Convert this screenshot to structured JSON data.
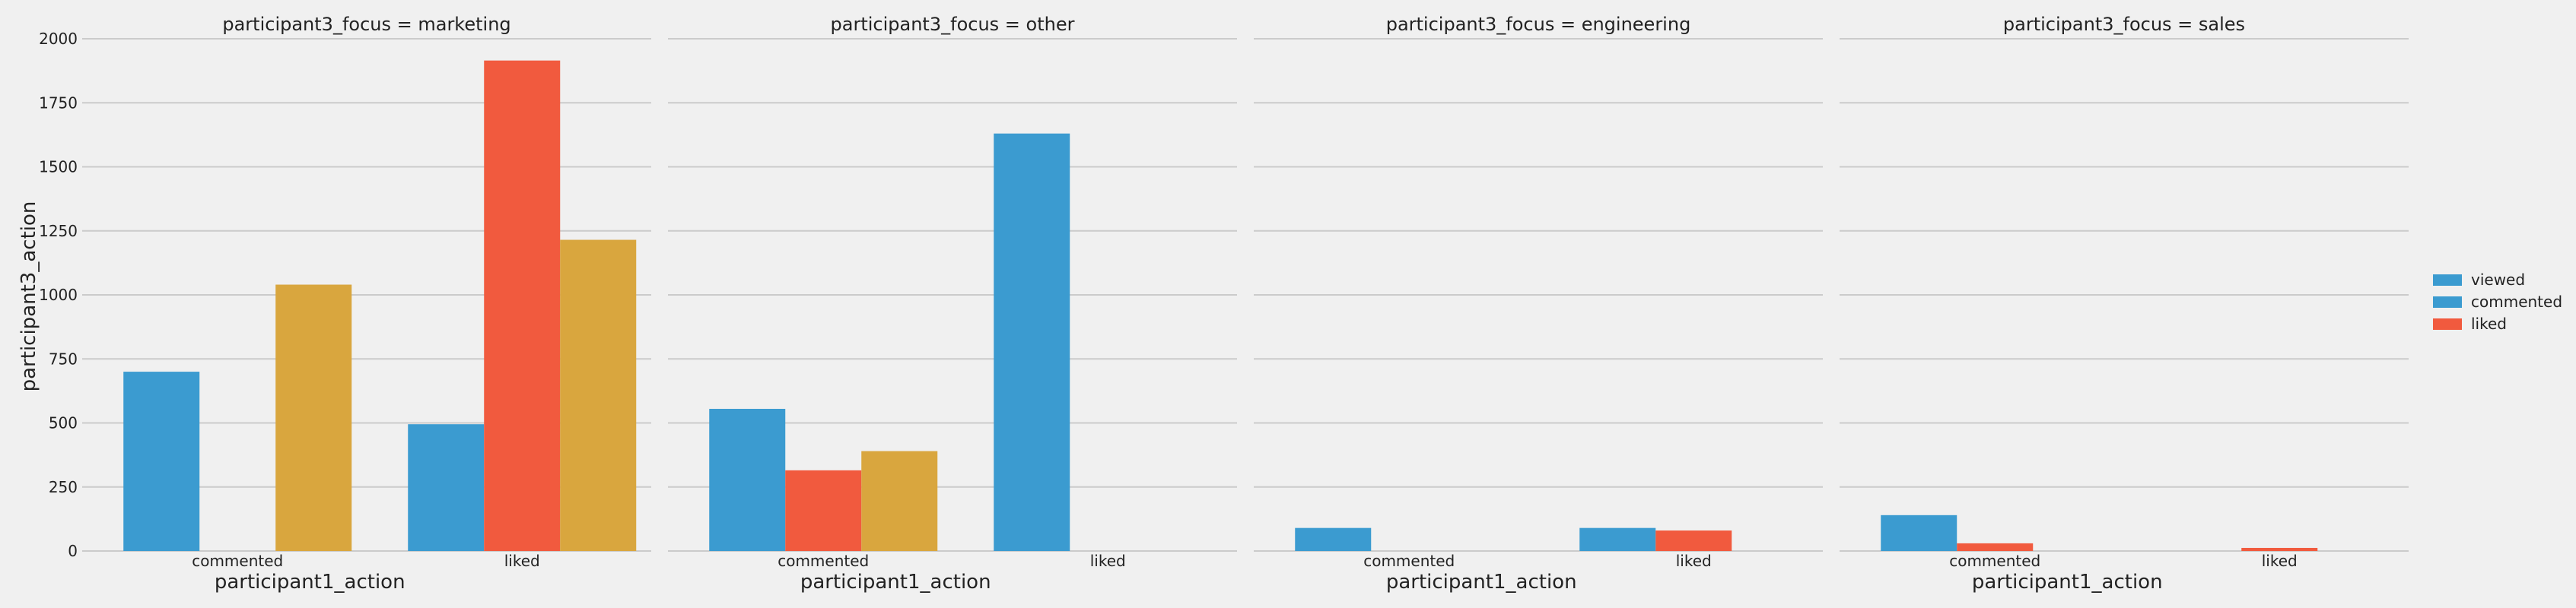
{
  "chart_data": {
    "type": "bar",
    "ylabel": "participant3_action",
    "xlabel": "participant1_action",
    "ylim": [
      0,
      2000
    ],
    "yticks": [
      0,
      250,
      500,
      750,
      1000,
      1250,
      1500,
      1750,
      2000
    ],
    "categories": [
      "commented",
      "liked"
    ],
    "grid": true,
    "legend_position": "right",
    "legend": [
      {
        "label": "viewed",
        "color": "#3b9bd0"
      },
      {
        "label": "commented",
        "color": "#3b9bd0"
      },
      {
        "label": "liked",
        "color": "#f15a3e"
      }
    ],
    "hue_colors": [
      "#3b9bd0",
      "#f15a3e",
      "#d9a63e"
    ],
    "panels": [
      {
        "title": "participant3_focus = marketing",
        "values": [
          [
            700,
            0,
            1040
          ],
          [
            495,
            1915,
            1215
          ]
        ]
      },
      {
        "title": "participant3_focus = other",
        "values": [
          [
            555,
            315,
            390
          ],
          [
            1630,
            0,
            0
          ]
        ]
      },
      {
        "title": "participant3_focus = engineering",
        "values": [
          [
            90,
            0,
            0
          ],
          [
            90,
            80,
            0
          ]
        ]
      },
      {
        "title": "participant3_focus = sales",
        "values": [
          [
            140,
            30,
            0
          ],
          [
            0,
            12,
            0
          ]
        ]
      }
    ]
  }
}
